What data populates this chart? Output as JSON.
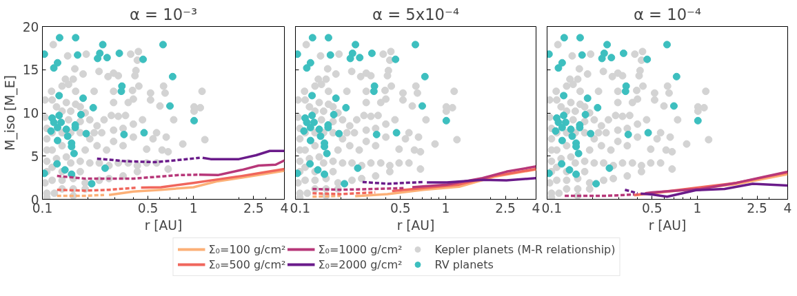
{
  "chart_data": [
    {
      "type": "line",
      "title": "α = 10⁻³",
      "xlabel": "r [AU]",
      "ylabel": "M_iso [M_E]",
      "log": "x",
      "xlim": [
        0.1,
        4
      ],
      "xticks": [
        0.1,
        0.5,
        1,
        2.5,
        4
      ],
      "ylim": [
        0,
        20
      ],
      "yticks": [
        0,
        5,
        10,
        15,
        20
      ],
      "grid": false,
      "series": [
        {
          "type": "scatter",
          "marker": "circle",
          "color": "#d3d3d3",
          "x": [
            0.118,
            0.147,
            0.195,
            0.384,
            0.432,
            0.425,
            0.164,
            0.186,
            0.142,
            0.16,
            0.237,
            0.272,
            0.296,
            0.318,
            0.41,
            0.416,
            0.435,
            0.634,
            0.649,
            1.14,
            0.52,
            0.52,
            0.22,
            0.296,
            0.395,
            0.115,
            0.135,
            0.149,
            0.166,
            0.296,
            0.4,
            0.37,
            0.6,
            1.01,
            1.01,
            1.11,
            0.74,
            0.85,
            1.19,
            0.66,
            0.62,
            0.68,
            0.49,
            0.54,
            0.57,
            0.46,
            0.4,
            0.355,
            0.318,
            0.286,
            0.256,
            0.23,
            0.247,
            0.296,
            0.342,
            0.4,
            0.342,
            0.296,
            0.266,
            0.23,
            0.206,
            0.192,
            0.178,
            0.206,
            0.238,
            0.276,
            0.318,
            0.37,
            0.425,
            0.49,
            0.57,
            0.68,
            0.425,
            0.342,
            0.276,
            0.238,
            0.192,
            0.16,
            0.135,
            0.12,
            0.107,
            0.104,
            0.107,
            0.107,
            0.107,
            0.107,
            0.107,
            0.104,
            0.104,
            0.116,
            0.124,
            0.135,
            0.144,
            0.154,
            0.166,
            0.178,
            0.192,
            0.206,
            0.116,
            0.135,
            0.135,
            0.116,
            0.124,
            0.144,
            0.154,
            0.116,
            0.135,
            0.178,
            0.116,
            0.135,
            0.16,
            0.107,
            0.16,
            0.192,
            0.22,
            0.178,
            0.154,
            0.178,
            0.149
          ],
          "values": [
            17.9,
            16.6,
            16.8,
            16.8,
            17.1,
            16.1,
            15.1,
            14.5,
            13.9,
            13.9,
            14.8,
            14.2,
            14.6,
            14.3,
            14.3,
            14.9,
            13.1,
            13.1,
            12.3,
            12.5,
            12.3,
            11.5,
            12.5,
            12.5,
            12.6,
            12.5,
            13.1,
            13.3,
            12.5,
            11.2,
            11.6,
            11.2,
            10.8,
            10.7,
            10.2,
            10.6,
            9.2,
            6.4,
            6.9,
            7.2,
            5.7,
            5.5,
            5.8,
            7.0,
            7.7,
            9.2,
            8.7,
            9.7,
            9.6,
            9.7,
            9.2,
            8.5,
            7.7,
            8.0,
            8.2,
            7.2,
            6.2,
            6.7,
            5.7,
            6.2,
            7.0,
            5.7,
            4.4,
            4.2,
            4.2,
            3.9,
            4.2,
            4.2,
            3.9,
            4.2,
            4.2,
            3.5,
            3.2,
            2.7,
            2.4,
            2.2,
            1.9,
            1.2,
            1.2,
            0.7,
            0.7,
            1.9,
            3.2,
            4.4,
            5.7,
            7.0,
            8.2,
            9.5,
            11.5,
            11.5,
            10.7,
            10.2,
            11.2,
            10.2,
            11.0,
            10.7,
            10.0,
            9.2,
            7.7,
            7.7,
            6.2,
            5.7,
            4.7,
            4.9,
            4.2,
            3.7,
            3.2,
            3.2,
            2.2,
            2.2,
            2.4,
            0.2,
            0.4,
            1.2,
            7.7,
            7.7,
            7.7,
            9.0,
            9.2
          ]
        },
        {
          "type": "scatter",
          "marker": "circle",
          "color": "#3dbfbf",
          "x": [
            0.103,
            0.13,
            0.166,
            0.126,
            0.119,
            0.171,
            0.251,
            0.24,
            0.232,
            0.268,
            0.323,
            0.464,
            0.629,
            0.728,
            0.336,
            0.333,
            0.129,
            0.186,
            0.217,
            0.699,
            1.01,
            0.116,
            0.129,
            0.119,
            0.133,
            0.18,
            0.114,
            0.126,
            0.144,
            0.165,
            0.165,
            0.147,
            0.195,
            0.347,
            0.471,
            0.126,
            0.156,
            0.156,
            0.162,
            0.125,
            0.141,
            0.156,
            0.26,
            0.212,
            0.103
          ],
          "values": [
            16.8,
            18.7,
            18.7,
            15.8,
            15.2,
            16.7,
            17.9,
            16.9,
            16.3,
            16.4,
            16.9,
            16.2,
            17.9,
            14.2,
            13.1,
            12.5,
            12.0,
            11.7,
            10.6,
            10.8,
            9.1,
            9.4,
            9.7,
            8.9,
            8.9,
            9.8,
            7.9,
            8.3,
            8.1,
            8.6,
            8.3,
            7.3,
            7.6,
            7.5,
            7.7,
            6.8,
            6.5,
            6.1,
            5.3,
            4.1,
            3.4,
            2.9,
            3.6,
            1.8,
            3.0
          ]
        },
        {
          "color": "#fcb077",
          "line_style": "dashed",
          "x": [
            0.125,
            0.19,
            0.256
          ],
          "values": [
            0.4,
            0.4,
            0.5
          ]
        },
        {
          "color": "#fcb077",
          "line_style": "solid",
          "x": [
            0.276,
            0.4,
            0.61,
            1.0,
            1.45,
            2.09,
            2.9,
            4
          ],
          "values": [
            0.5,
            0.9,
            1.1,
            1.4,
            2.1,
            2.5,
            2.9,
            3.3
          ]
        },
        {
          "color": "#f0665c",
          "line_style": "dashed",
          "x": [
            0.125,
            0.19,
            0.276,
            0.425
          ],
          "values": [
            1.1,
            1.0,
            1.1,
            1.35
          ]
        },
        {
          "color": "#f0665c",
          "line_style": "solid",
          "x": [
            0.45,
            0.61,
            1.0,
            1.45,
            2.09,
            2.9,
            4
          ],
          "values": [
            1.35,
            1.4,
            1.9,
            2.3,
            2.7,
            3.1,
            3.5
          ]
        },
        {
          "color": "#b73779",
          "line_style": "dashed",
          "x": [
            0.125,
            0.19,
            0.276,
            0.4,
            0.57,
            0.8,
            1.09
          ],
          "values": [
            2.7,
            2.4,
            2.4,
            2.4,
            2.6,
            2.8,
            2.85
          ]
        },
        {
          "color": "#b73779",
          "line_style": "solid",
          "x": [
            1.09,
            1.45,
            2.09,
            2.7,
            3.5,
            4
          ],
          "values": [
            2.85,
            2.8,
            3.4,
            3.9,
            4.0,
            4.5
          ]
        },
        {
          "color": "#6a1b8a",
          "line_style": "dashed",
          "x": [
            0.23,
            0.27,
            0.36,
            0.56,
            0.75,
            1.1
          ],
          "values": [
            4.7,
            4.6,
            4.4,
            4.3,
            4.5,
            4.8
          ]
        },
        {
          "color": "#6a1b8a",
          "line_style": "solid",
          "x": [
            1.15,
            1.3,
            2.0,
            2.6,
            3.2,
            4
          ],
          "values": [
            4.8,
            4.65,
            4.65,
            5.1,
            5.6,
            5.6
          ]
        }
      ]
    },
    {
      "type": "line",
      "title": "α = 5x10⁻⁴",
      "xlabel": "r [AU]",
      "log": "x",
      "xlim": [
        0.1,
        4
      ],
      "xticks": [
        0.1,
        0.5,
        1,
        2.5,
        4
      ],
      "ylim": [
        0,
        20
      ],
      "yticks": [
        0,
        5,
        10,
        15,
        20
      ],
      "tick_labels": "x",
      "grid": false,
      "legend": "bottom",
      "series": [
        {
          "type": "scatter",
          "marker": "circle",
          "name": "Kepler planets (M-R relationship)",
          "color": "#d3d3d3",
          "x": [
            0.118,
            0.147,
            0.195,
            0.384,
            0.432,
            0.425,
            0.164,
            0.186,
            0.142,
            0.16,
            0.237,
            0.272,
            0.296,
            0.318,
            0.41,
            0.416,
            0.435,
            0.634,
            0.649,
            1.14,
            0.52,
            0.52,
            0.22,
            0.296,
            0.395,
            0.115,
            0.135,
            0.149,
            0.166,
            0.296,
            0.4,
            0.37,
            0.6,
            1.01,
            1.01,
            1.11,
            0.74,
            0.85,
            1.19,
            0.66,
            0.62,
            0.68,
            0.49,
            0.54,
            0.57,
            0.46,
            0.4,
            0.355,
            0.318,
            0.286,
            0.256,
            0.23,
            0.247,
            0.296,
            0.342,
            0.4,
            0.342,
            0.296,
            0.266,
            0.23,
            0.206,
            0.192,
            0.178,
            0.206,
            0.238,
            0.276,
            0.318,
            0.37,
            0.425,
            0.49,
            0.57,
            0.68,
            0.425,
            0.342,
            0.276,
            0.238,
            0.192,
            0.16,
            0.135,
            0.12,
            0.107,
            0.104,
            0.107,
            0.107,
            0.107,
            0.107,
            0.107,
            0.104,
            0.104,
            0.116,
            0.124,
            0.135,
            0.144,
            0.154,
            0.166,
            0.178,
            0.192,
            0.206,
            0.116,
            0.135,
            0.135,
            0.116,
            0.124,
            0.144,
            0.154,
            0.116,
            0.135,
            0.178,
            0.116,
            0.135,
            0.16,
            0.107,
            0.16,
            0.192,
            0.22,
            0.178,
            0.154,
            0.178,
            0.149
          ],
          "values": [
            17.9,
            16.6,
            16.8,
            16.8,
            17.1,
            16.1,
            15.1,
            14.5,
            13.9,
            13.9,
            14.8,
            14.2,
            14.6,
            14.3,
            14.3,
            14.9,
            13.1,
            13.1,
            12.3,
            12.5,
            12.3,
            11.5,
            12.5,
            12.5,
            12.6,
            12.5,
            13.1,
            13.3,
            12.5,
            11.2,
            11.6,
            11.2,
            10.8,
            10.7,
            10.2,
            10.6,
            9.2,
            6.4,
            6.9,
            7.2,
            5.7,
            5.5,
            5.8,
            7.0,
            7.7,
            9.2,
            8.7,
            9.7,
            9.6,
            9.7,
            9.2,
            8.5,
            7.7,
            8.0,
            8.2,
            7.2,
            6.2,
            6.7,
            5.7,
            6.2,
            7.0,
            5.7,
            4.4,
            4.2,
            4.2,
            3.9,
            4.2,
            4.2,
            3.9,
            4.2,
            4.2,
            3.5,
            3.2,
            2.7,
            2.4,
            2.2,
            1.9,
            1.2,
            1.2,
            0.7,
            0.7,
            1.9,
            3.2,
            4.4,
            5.7,
            7.0,
            8.2,
            9.5,
            11.5,
            11.5,
            10.7,
            10.2,
            11.2,
            10.2,
            11.0,
            10.7,
            10.0,
            9.2,
            7.7,
            7.7,
            6.2,
            5.7,
            4.7,
            4.9,
            4.2,
            3.7,
            3.2,
            3.2,
            2.2,
            2.2,
            2.4,
            0.2,
            0.4,
            1.2,
            7.7,
            7.7,
            7.7,
            9.0,
            9.2
          ]
        },
        {
          "type": "scatter",
          "marker": "circle",
          "name": "RV planets",
          "color": "#3dbfbf",
          "x": [
            0.103,
            0.13,
            0.166,
            0.126,
            0.119,
            0.171,
            0.251,
            0.24,
            0.232,
            0.268,
            0.323,
            0.464,
            0.629,
            0.728,
            0.336,
            0.333,
            0.129,
            0.186,
            0.217,
            0.699,
            1.01,
            0.116,
            0.129,
            0.119,
            0.133,
            0.18,
            0.114,
            0.126,
            0.144,
            0.165,
            0.165,
            0.147,
            0.195,
            0.347,
            0.471,
            0.126,
            0.156,
            0.156,
            0.162,
            0.125,
            0.141,
            0.156,
            0.26,
            0.212,
            0.103
          ],
          "values": [
            16.8,
            18.7,
            18.7,
            15.8,
            15.2,
            16.7,
            17.9,
            16.9,
            16.3,
            16.4,
            16.9,
            16.2,
            17.9,
            14.2,
            13.1,
            12.5,
            12.0,
            11.7,
            10.6,
            10.8,
            9.1,
            9.4,
            9.7,
            8.9,
            8.9,
            9.8,
            7.9,
            8.3,
            8.1,
            8.6,
            8.3,
            7.3,
            7.6,
            7.5,
            7.7,
            6.8,
            6.5,
            6.1,
            5.3,
            4.1,
            3.4,
            2.9,
            3.6,
            1.8,
            3.0
          ]
        },
        {
          "color": "#fcb077",
          "line_style": "dashed",
          "x": [
            0.13,
            0.2
          ],
          "values": [
            0.3,
            0.4
          ]
        },
        {
          "name": "Σ₀=100 g/cm²",
          "color": "#fcb077",
          "line_style": "solid",
          "x": [
            0.25,
            0.41,
            0.71,
            1.23,
            2.1,
            4
          ],
          "values": [
            0.35,
            0.6,
            1.1,
            1.45,
            2.6,
            3.45
          ]
        },
        {
          "color": "#f0665c",
          "line_style": "dashed",
          "x": [
            0.13,
            0.2,
            0.34
          ],
          "values": [
            0.7,
            0.6,
            0.8
          ]
        },
        {
          "name": "Σ₀=500 g/cm²",
          "color": "#f0665c",
          "line_style": "solid",
          "x": [
            0.44,
            0.71,
            1.23,
            2.1,
            4
          ],
          "values": [
            0.95,
            1.3,
            1.7,
            2.7,
            3.5
          ]
        },
        {
          "color": "#b73779",
          "line_style": "dashed",
          "x": [
            0.13,
            0.2,
            0.34,
            0.53
          ],
          "values": [
            1.2,
            1.1,
            1.2,
            1.3
          ]
        },
        {
          "name": "Σ₀=1000 g/cm²",
          "color": "#b73779",
          "line_style": "solid",
          "x": [
            0.6,
            0.71,
            1.02,
            1.76,
            2.54,
            4
          ],
          "values": [
            1.4,
            1.5,
            1.7,
            2.45,
            3.2,
            3.8
          ]
        },
        {
          "color": "#6a1b8a",
          "line_style": "dashed",
          "x": [
            0.28,
            0.41,
            0.71
          ],
          "values": [
            2.0,
            1.8,
            2.0
          ]
        },
        {
          "name": "Σ₀=2000 g/cm²",
          "color": "#6a1b8a",
          "line_style": "solid",
          "x": [
            0.75,
            1.02,
            1.76,
            2.54,
            4
          ],
          "values": [
            1.95,
            1.95,
            2.25,
            2.2,
            2.45
          ]
        }
      ]
    },
    {
      "type": "line",
      "title": "α = 10⁻⁴",
      "xlabel": "r [AU]",
      "log": "x",
      "xlim": [
        0.1,
        4
      ],
      "xticks": [
        0.1,
        0.5,
        1,
        2.5,
        4
      ],
      "ylim": [
        0,
        20
      ],
      "yticks": [
        0,
        5,
        10,
        15,
        20
      ],
      "tick_labels": "x",
      "grid": false,
      "series": [
        {
          "type": "scatter",
          "marker": "circle",
          "color": "#d3d3d3",
          "x": [
            0.118,
            0.147,
            0.195,
            0.384,
            0.432,
            0.425,
            0.164,
            0.186,
            0.142,
            0.16,
            0.237,
            0.272,
            0.296,
            0.318,
            0.41,
            0.416,
            0.435,
            0.634,
            0.649,
            1.14,
            0.52,
            0.52,
            0.22,
            0.296,
            0.395,
            0.115,
            0.135,
            0.149,
            0.166,
            0.296,
            0.4,
            0.37,
            0.6,
            1.01,
            1.01,
            1.11,
            0.74,
            0.85,
            1.19,
            0.66,
            0.62,
            0.68,
            0.49,
            0.54,
            0.57,
            0.46,
            0.4,
            0.355,
            0.318,
            0.286,
            0.256,
            0.23,
            0.247,
            0.296,
            0.342,
            0.4,
            0.342,
            0.296,
            0.266,
            0.23,
            0.206,
            0.192,
            0.178,
            0.206,
            0.238,
            0.276,
            0.318,
            0.37,
            0.425,
            0.49,
            0.57,
            0.68,
            0.425,
            0.342,
            0.276,
            0.238,
            0.192,
            0.16,
            0.135,
            0.12,
            0.107,
            0.104,
            0.107,
            0.107,
            0.107,
            0.107,
            0.107,
            0.104,
            0.104,
            0.116,
            0.124,
            0.135,
            0.144,
            0.154,
            0.166,
            0.178,
            0.192,
            0.206,
            0.116,
            0.135,
            0.135,
            0.116,
            0.124,
            0.144,
            0.154,
            0.116,
            0.135,
            0.178,
            0.116,
            0.135,
            0.16,
            0.107,
            0.16,
            0.192,
            0.22,
            0.178,
            0.154,
            0.178,
            0.149
          ],
          "values": [
            17.9,
            16.6,
            16.8,
            16.8,
            17.1,
            16.1,
            15.1,
            14.5,
            13.9,
            13.9,
            14.8,
            14.2,
            14.6,
            14.3,
            14.3,
            14.9,
            13.1,
            13.1,
            12.3,
            12.5,
            12.3,
            11.5,
            12.5,
            12.5,
            12.6,
            12.5,
            13.1,
            13.3,
            12.5,
            11.2,
            11.6,
            11.2,
            10.8,
            10.7,
            10.2,
            10.6,
            9.2,
            6.4,
            6.9,
            7.2,
            5.7,
            5.5,
            5.8,
            7.0,
            7.7,
            9.2,
            8.7,
            9.7,
            9.6,
            9.7,
            9.2,
            8.5,
            7.7,
            8.0,
            8.2,
            7.2,
            6.2,
            6.7,
            5.7,
            6.2,
            7.0,
            5.7,
            4.4,
            4.2,
            4.2,
            3.9,
            4.2,
            4.2,
            3.9,
            4.2,
            4.2,
            3.5,
            3.2,
            2.7,
            2.4,
            2.2,
            1.9,
            1.2,
            1.2,
            0.7,
            0.7,
            1.9,
            3.2,
            4.4,
            5.7,
            7.0,
            8.2,
            9.5,
            11.5,
            11.5,
            10.7,
            10.2,
            11.2,
            10.2,
            11.0,
            10.7,
            10.0,
            9.2,
            7.7,
            7.7,
            6.2,
            5.7,
            4.7,
            4.9,
            4.2,
            3.7,
            3.2,
            3.2,
            2.2,
            2.2,
            2.4,
            0.2,
            0.4,
            1.2,
            7.7,
            7.7,
            7.7,
            9.0,
            9.2
          ]
        },
        {
          "type": "scatter",
          "marker": "circle",
          "color": "#3dbfbf",
          "x": [
            0.103,
            0.13,
            0.166,
            0.126,
            0.119,
            0.171,
            0.251,
            0.24,
            0.232,
            0.268,
            0.323,
            0.464,
            0.629,
            0.728,
            0.336,
            0.333,
            0.129,
            0.186,
            0.217,
            0.699,
            1.01,
            0.116,
            0.129,
            0.119,
            0.133,
            0.18,
            0.114,
            0.126,
            0.144,
            0.165,
            0.165,
            0.147,
            0.195,
            0.347,
            0.471,
            0.126,
            0.156,
            0.156,
            0.162,
            0.125,
            0.141,
            0.156,
            0.26,
            0.212,
            0.103
          ],
          "values": [
            16.8,
            18.7,
            18.7,
            15.8,
            15.2,
            16.7,
            17.9,
            16.9,
            16.3,
            16.4,
            16.9,
            16.2,
            17.9,
            14.2,
            13.1,
            12.5,
            12.0,
            11.7,
            10.6,
            10.8,
            9.1,
            9.4,
            9.7,
            8.9,
            8.9,
            9.8,
            7.9,
            8.3,
            8.1,
            8.6,
            8.3,
            7.3,
            7.6,
            7.5,
            7.7,
            6.8,
            6.5,
            6.1,
            5.3,
            4.1,
            3.4,
            2.9,
            3.6,
            1.8,
            3.0
          ]
        },
        {
          "color": "#fcb077",
          "line_style": "solid",
          "x": [
            0.38,
            0.73,
            1.82,
            4
          ],
          "values": [
            0.45,
            1.0,
            1.75,
            2.9
          ]
        },
        {
          "color": "#f0665c",
          "line_style": "solid",
          "x": [
            0.38,
            0.73,
            1.82,
            4
          ],
          "values": [
            0.5,
            1.05,
            1.9,
            3.1
          ]
        },
        {
          "color": "#b73779",
          "line_style": "dashed",
          "x": [
            0.131,
            0.247,
            0.38
          ],
          "values": [
            0.4,
            0.4,
            0.55
          ]
        },
        {
          "color": "#b73779",
          "line_style": "solid",
          "x": [
            0.45,
            0.5,
            1.05,
            1.82,
            4
          ],
          "values": [
            0.7,
            0.8,
            1.2,
            1.9,
            3.2
          ]
        },
        {
          "color": "#6a1b8a",
          "line_style": "dashed",
          "x": [
            0.33,
            0.4
          ],
          "values": [
            1.1,
            0.7
          ]
        },
        {
          "color": "#6a1b8a",
          "line_style": "solid",
          "x": [
            0.42,
            0.5,
            0.63,
            0.98,
            1.52,
            2.34,
            4
          ],
          "values": [
            0.65,
            0.55,
            0.3,
            1.05,
            1.2,
            1.8,
            1.6
          ]
        }
      ]
    }
  ]
}
